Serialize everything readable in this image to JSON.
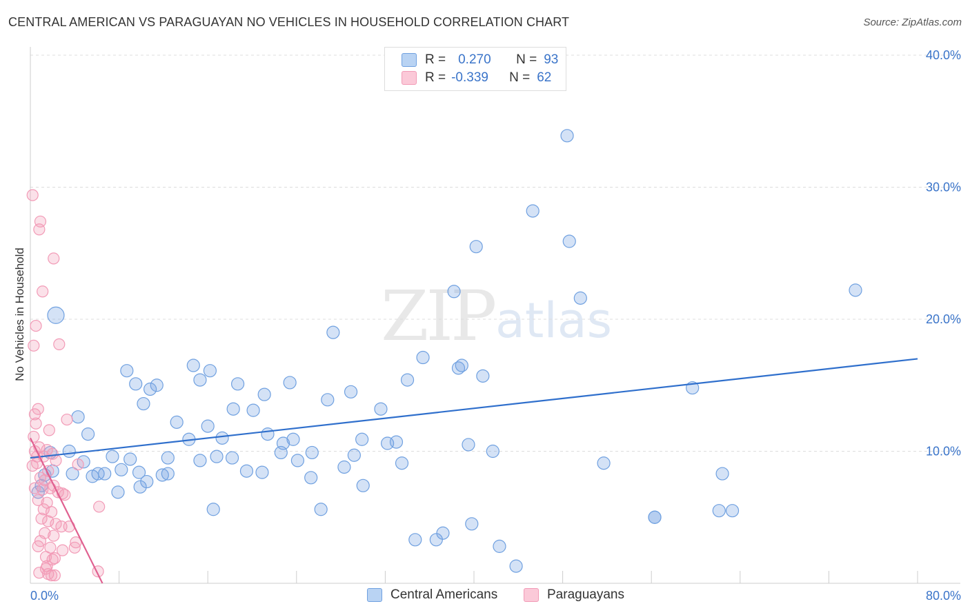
{
  "title": "CENTRAL AMERICAN VS PARAGUAYAN NO VEHICLES IN HOUSEHOLD CORRELATION CHART",
  "source": "Source: ZipAtlas.com",
  "watermark": {
    "zip": "ZIP",
    "atlas": "atlas"
  },
  "legend": {
    "series1": {
      "r_label": "R =",
      "r_value": "0.270",
      "n_label": "N =",
      "n_value": "93"
    },
    "series2": {
      "r_label": "R =",
      "r_value": "-0.339",
      "n_label": "N =",
      "n_value": "62"
    }
  },
  "chart_data": {
    "type": "scatter",
    "title": "CENTRAL AMERICAN VS PARAGUAYAN NO VEHICLES IN HOUSEHOLD CORRELATION CHART",
    "xlabel": "",
    "ylabel": "No Vehicles in Household",
    "xlim": [
      0,
      80
    ],
    "ylim": [
      0,
      40
    ],
    "x_tick_labels": [
      "0.0%",
      "80.0%"
    ],
    "y_tick_labels": [
      "10.0%",
      "20.0%",
      "30.0%",
      "40.0%"
    ],
    "y_ticks": [
      10,
      20,
      30,
      40
    ],
    "x_minor_ticks": [
      8,
      16,
      24,
      32,
      40,
      48,
      56,
      64,
      72,
      80
    ],
    "grid": true,
    "colors": {
      "central": "#6fa0e0",
      "central_line": "#2f6fcc",
      "paraguayan": "#f29ab6",
      "paraguayan_line": "#e06090",
      "axis_text": "#3a74c9"
    },
    "series": [
      {
        "name": "Central Americans",
        "r": 0.27,
        "n": 93,
        "trend": {
          "x": [
            0,
            80
          ],
          "y": [
            9.5,
            17.0
          ]
        },
        "points": [
          [
            2.3,
            20.3
          ],
          [
            38.2,
            22.1
          ],
          [
            49.6,
            21.6
          ],
          [
            27.3,
            19.0
          ],
          [
            74.4,
            22.2
          ],
          [
            40.2,
            25.5
          ],
          [
            45.3,
            28.2
          ],
          [
            48.6,
            25.9
          ],
          [
            48.4,
            33.9
          ],
          [
            9.5,
            15.1
          ],
          [
            8.7,
            16.1
          ],
          [
            11.4,
            15.0
          ],
          [
            14.7,
            16.5
          ],
          [
            16.2,
            16.1
          ],
          [
            15.3,
            15.4
          ],
          [
            18.7,
            15.1
          ],
          [
            21.1,
            14.3
          ],
          [
            23.4,
            15.2
          ],
          [
            20.1,
            13.1
          ],
          [
            26.8,
            13.9
          ],
          [
            28.9,
            14.5
          ],
          [
            31.6,
            13.2
          ],
          [
            34.0,
            15.4
          ],
          [
            35.4,
            17.1
          ],
          [
            38.6,
            16.3
          ],
          [
            38.9,
            16.5
          ],
          [
            40.8,
            15.7
          ],
          [
            59.7,
            14.8
          ],
          [
            4.3,
            12.6
          ],
          [
            5.2,
            11.3
          ],
          [
            10.2,
            13.6
          ],
          [
            10.8,
            14.7
          ],
          [
            13.2,
            12.2
          ],
          [
            14.3,
            10.9
          ],
          [
            16.0,
            11.9
          ],
          [
            17.3,
            11.0
          ],
          [
            18.3,
            13.2
          ],
          [
            21.4,
            11.3
          ],
          [
            22.8,
            10.6
          ],
          [
            23.7,
            10.9
          ],
          [
            25.4,
            9.9
          ],
          [
            29.2,
            9.7
          ],
          [
            29.9,
            10.9
          ],
          [
            32.2,
            10.6
          ],
          [
            33.0,
            10.7
          ],
          [
            39.5,
            10.5
          ],
          [
            41.7,
            10.0
          ],
          [
            51.7,
            9.1
          ],
          [
            62.4,
            8.3
          ],
          [
            1.8,
            9.9
          ],
          [
            3.5,
            10.0
          ],
          [
            4.8,
            9.2
          ],
          [
            7.4,
            9.6
          ],
          [
            9.0,
            9.4
          ],
          [
            12.4,
            9.5
          ],
          [
            15.3,
            9.3
          ],
          [
            16.8,
            9.6
          ],
          [
            18.2,
            9.5
          ],
          [
            19.5,
            8.5
          ],
          [
            20.9,
            8.4
          ],
          [
            22.6,
            9.9
          ],
          [
            24.1,
            9.3
          ],
          [
            25.3,
            8.0
          ],
          [
            28.3,
            8.8
          ],
          [
            30.0,
            7.4
          ],
          [
            33.5,
            9.1
          ],
          [
            2.0,
            8.5
          ],
          [
            1.0,
            7.4
          ],
          [
            1.3,
            8.2
          ],
          [
            3.8,
            8.3
          ],
          [
            5.6,
            8.1
          ],
          [
            6.1,
            8.3
          ],
          [
            6.7,
            8.3
          ],
          [
            8.2,
            8.6
          ],
          [
            9.8,
            8.4
          ],
          [
            10.5,
            7.7
          ],
          [
            11.9,
            8.2
          ],
          [
            12.4,
            8.3
          ],
          [
            7.9,
            6.9
          ],
          [
            9.9,
            7.3
          ],
          [
            0.7,
            6.9
          ],
          [
            16.5,
            5.6
          ],
          [
            26.2,
            5.6
          ],
          [
            34.7,
            3.3
          ],
          [
            36.6,
            3.3
          ],
          [
            37.2,
            3.8
          ],
          [
            39.8,
            4.5
          ],
          [
            42.3,
            2.8
          ],
          [
            43.8,
            1.3
          ],
          [
            56.3,
            5.0
          ],
          [
            62.1,
            5.5
          ],
          [
            56.3,
            5.0
          ],
          [
            63.3,
            5.5
          ]
        ]
      },
      {
        "name": "Paraguayans",
        "r": -0.339,
        "n": 62,
        "trend": {
          "x": [
            0,
            6.5
          ],
          "y": [
            11.0,
            0.0
          ]
        },
        "points": [
          [
            0.2,
            29.4
          ],
          [
            0.9,
            27.4
          ],
          [
            0.8,
            26.8
          ],
          [
            2.1,
            24.6
          ],
          [
            1.1,
            22.1
          ],
          [
            0.5,
            19.5
          ],
          [
            0.3,
            18.0
          ],
          [
            2.6,
            18.1
          ],
          [
            0.7,
            13.2
          ],
          [
            0.4,
            12.8
          ],
          [
            0.5,
            12.1
          ],
          [
            3.3,
            12.4
          ],
          [
            1.7,
            11.6
          ],
          [
            0.3,
            11.1
          ],
          [
            0.8,
            10.3
          ],
          [
            0.4,
            10.0
          ],
          [
            1.5,
            10.1
          ],
          [
            2.0,
            9.8
          ],
          [
            1.2,
            9.6
          ],
          [
            0.6,
            9.1
          ],
          [
            2.3,
            9.3
          ],
          [
            4.3,
            9.0
          ],
          [
            0.2,
            8.9
          ],
          [
            1.6,
            8.5
          ],
          [
            0.9,
            8.0
          ],
          [
            1.3,
            7.8
          ],
          [
            2.1,
            7.4
          ],
          [
            0.4,
            7.2
          ],
          [
            1.1,
            7.1
          ],
          [
            1.8,
            7.2
          ],
          [
            2.5,
            6.9
          ],
          [
            3.1,
            6.7
          ],
          [
            2.9,
            6.8
          ],
          [
            0.7,
            6.3
          ],
          [
            1.5,
            6.1
          ],
          [
            1.2,
            5.6
          ],
          [
            1.9,
            5.4
          ],
          [
            6.2,
            5.8
          ],
          [
            1.0,
            4.9
          ],
          [
            1.6,
            4.7
          ],
          [
            2.3,
            4.5
          ],
          [
            2.8,
            4.3
          ],
          [
            3.5,
            4.3
          ],
          [
            1.3,
            3.8
          ],
          [
            2.1,
            3.6
          ],
          [
            0.9,
            3.2
          ],
          [
            0.7,
            2.8
          ],
          [
            1.8,
            2.7
          ],
          [
            2.9,
            2.5
          ],
          [
            4.0,
            2.7
          ],
          [
            4.1,
            3.1
          ],
          [
            1.4,
            2.0
          ],
          [
            2.0,
            1.8
          ],
          [
            1.5,
            1.3
          ],
          [
            0.8,
            0.8
          ],
          [
            1.6,
            0.7
          ],
          [
            2.2,
            0.6
          ],
          [
            1.9,
            0.6
          ],
          [
            6.1,
            0.9
          ],
          [
            2.2,
            1.9
          ],
          [
            1.4,
            1.1
          ],
          [
            0.6,
            9.6
          ]
        ]
      }
    ]
  },
  "bottom_legend": {
    "central": "Central Americans",
    "paraguayan": "Paraguayans"
  }
}
